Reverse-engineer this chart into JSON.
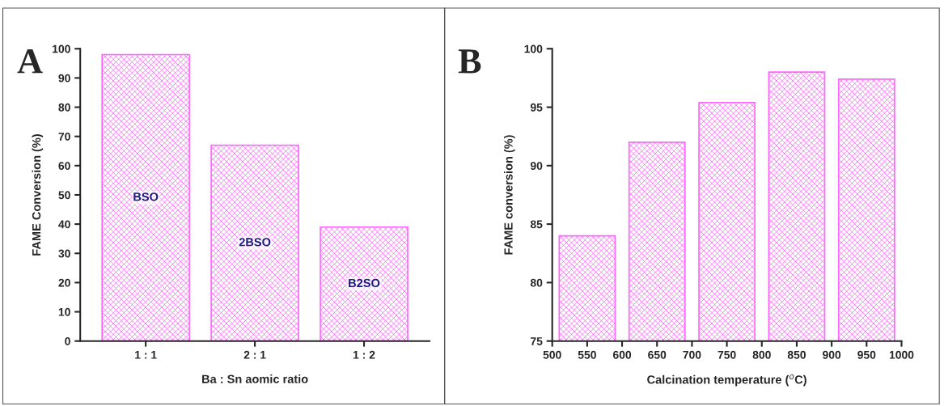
{
  "chart_data": [
    {
      "type": "bar",
      "categories": [
        "1 : 1",
        "2 : 1",
        "1 : 2"
      ],
      "values": [
        98,
        67,
        39
      ],
      "color": "#ff66ff",
      "xlabel": "Ba : Sn aomic ratio",
      "ylabel": "FAME Conversion (%)",
      "ylim": [
        0,
        100
      ],
      "yticks": [
        0,
        10,
        20,
        30,
        40,
        50,
        60,
        70,
        80,
        90,
        100
      ],
      "grid": false,
      "annotations": [
        "A",
        "BSO",
        "2BSO",
        "B2SO"
      ]
    },
    {
      "type": "bar",
      "x": [
        550,
        650,
        750,
        850,
        950
      ],
      "values": [
        84,
        92,
        95.4,
        98,
        97.4
      ],
      "color": "#ff66ff",
      "xlabel": "Calcination temperature ($^{o}$C)",
      "ylabel": "FAME conversion (%)",
      "xlim": [
        500,
        1000
      ],
      "xticks": [
        500,
        550,
        600,
        650,
        700,
        750,
        800,
        850,
        900,
        950,
        1000
      ],
      "ylim": [
        75,
        100
      ],
      "yticks": [
        75,
        80,
        85,
        90,
        95,
        100
      ],
      "grid": false,
      "annotations": [
        "B"
      ]
    }
  ]
}
